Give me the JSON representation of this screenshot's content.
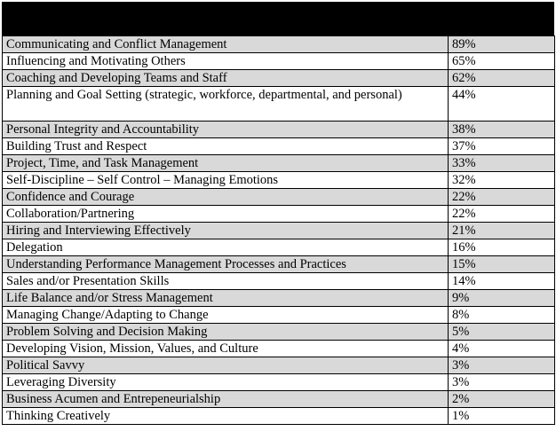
{
  "table": {
    "header": {
      "skill_label": "",
      "percent_label": ""
    },
    "rows": [
      {
        "skill": "Communicating and Conflict Management",
        "percent": "89%"
      },
      {
        "skill": "Influencing and Motivating Others",
        "percent": "65%"
      },
      {
        "skill": "Coaching and Developing Teams and Staff",
        "percent": "62%"
      },
      {
        "skill": "Planning and Goal Setting (strategic, workforce, departmental, and personal)",
        "percent": "44%"
      },
      {
        "skill": "Personal Integrity and Accountability",
        "percent": "38%"
      },
      {
        "skill": "Building Trust and Respect",
        "percent": "37%"
      },
      {
        "skill": "Project, Time, and Task Management",
        "percent": "33%"
      },
      {
        "skill": "Self-Discipline – Self Control – Managing Emotions",
        "percent": "32%"
      },
      {
        "skill": "Confidence and Courage",
        "percent": "22%"
      },
      {
        "skill": "Collaboration/Partnering",
        "percent": "22%"
      },
      {
        "skill": "Hiring and Interviewing Effectively",
        "percent": "21%"
      },
      {
        "skill": "Delegation",
        "percent": "16%"
      },
      {
        "skill": "Understanding Performance Management Processes and Practices",
        "percent": "15%"
      },
      {
        "skill": "Sales and/or Presentation Skills",
        "percent": "14%"
      },
      {
        "skill": "Life Balance and/or Stress Management",
        "percent": "9%"
      },
      {
        "skill": "Managing Change/Adapting to Change",
        "percent": "8%"
      },
      {
        "skill": "Problem Solving and Decision Making",
        "percent": "5%"
      },
      {
        "skill": "Developing Vision, Mission, Values, and Culture",
        "percent": "4%"
      },
      {
        "skill": "Political Savvy",
        "percent": "3%"
      },
      {
        "skill": "Leveraging Diversity",
        "percent": "3%"
      },
      {
        "skill": "Business Acumen and Entrepeneurialship",
        "percent": "2%"
      },
      {
        "skill": "Thinking Creatively",
        "percent": "1%"
      }
    ]
  },
  "colors": {
    "header_bg": "#000000",
    "shaded_row": "#d9d9d9",
    "plain_row": "#ffffff"
  }
}
